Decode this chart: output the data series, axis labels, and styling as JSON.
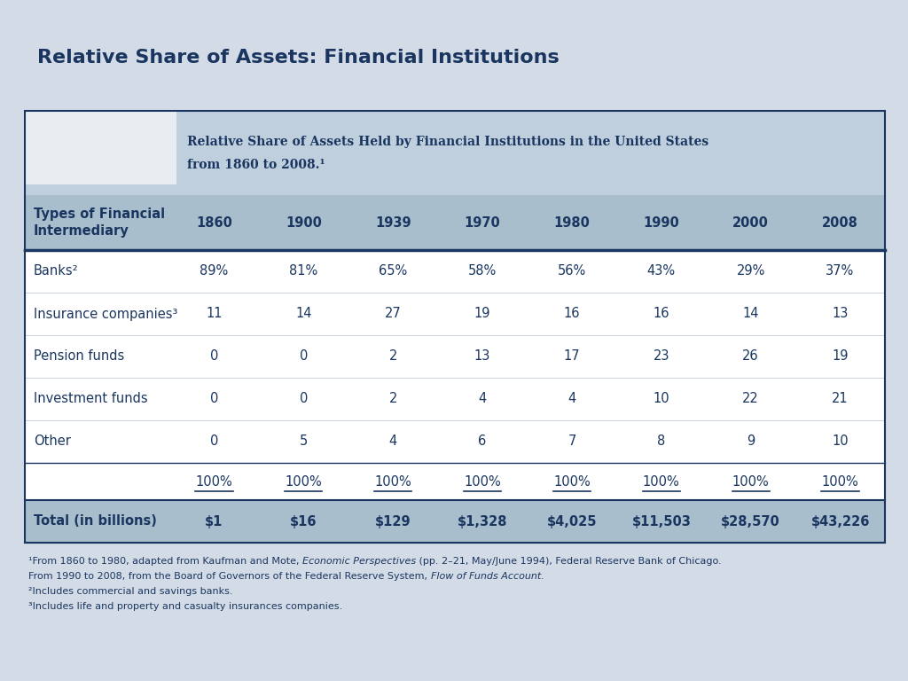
{
  "slide_title": "Relative Share of Assets: Financial Institutions",
  "table_title_line1": "Relative Share of Assets Held by Financial Institutions in the United States",
  "table_title_line2": "from 1860 to 2008.¹",
  "col_header_label": "Types of Financial\nIntermediary",
  "years": [
    "1860",
    "1900",
    "1939",
    "1970",
    "1980",
    "1990",
    "2000",
    "2008"
  ],
  "rows": [
    {
      "label": "Banks²",
      "values": [
        "89%",
        "81%",
        "65%",
        "58%",
        "56%",
        "43%",
        "29%",
        "37%"
      ]
    },
    {
      "label": "Insurance companies³",
      "values": [
        "11",
        "14",
        "27",
        "19",
        "16",
        "16",
        "14",
        "13"
      ]
    },
    {
      "label": "Pension funds",
      "values": [
        "0",
        "0",
        "2",
        "13",
        "17",
        "23",
        "26",
        "19"
      ]
    },
    {
      "label": "Investment funds",
      "values": [
        "0",
        "0",
        "2",
        "4",
        "4",
        "10",
        "22",
        "21"
      ]
    },
    {
      "label": "Other",
      "values": [
        "0",
        "5",
        "4",
        "6",
        "7",
        "8",
        "9",
        "10"
      ]
    }
  ],
  "totals_pct": [
    "100%",
    "100%",
    "100%",
    "100%",
    "100%",
    "100%",
    "100%",
    "100%"
  ],
  "totals_row": {
    "label": "Total (in billions)",
    "values": [
      "$1",
      "$16",
      "$129",
      "$1,328",
      "$4,025",
      "$11,503",
      "$28,570",
      "$43,226"
    ]
  },
  "footnote1a": "¹From 1860 to 1980, adapted from Kaufman and Mote, ",
  "footnote1b": "Economic Perspectives",
  "footnote1c": " (pp. 2–21, May/June 1994), Federal Reserve Bank of Chicago.",
  "footnote2a": "From 1990 to 2008, from the Board of Governors of the Federal Reserve System, ",
  "footnote2b": "Flow of Funds Account",
  "footnote2c": ".",
  "footnote3": "²Includes commercial and savings banks.",
  "footnote4": "³Includes life and property and casualty insurances companies.",
  "slide_bg": "#d3dce6",
  "table_outer_bg": "#ffffff",
  "table_title_bg": "#bfcfde",
  "white_box_bg": "#e8edf2",
  "header_bg": "#a8becc",
  "total_row_bg": "#a8becc",
  "data_row_bg": "#ffffff",
  "border_color": "#1a3660",
  "text_color": "#1a3660",
  "slide_title_color": "#1a3660"
}
